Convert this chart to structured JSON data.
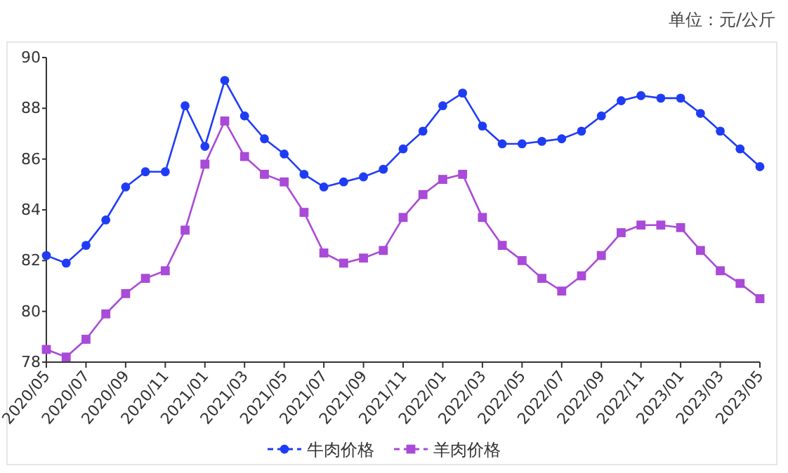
{
  "chart_data": {
    "type": "line",
    "annotations": [
      "单位：元/公斤"
    ],
    "categories": [
      "2020/05",
      null,
      "2020/07",
      null,
      "2020/09",
      null,
      "2020/11",
      null,
      "2021/01",
      null,
      "2021/03",
      null,
      "2021/05",
      null,
      "2021/07",
      null,
      "2021/09",
      null,
      "2021/11",
      null,
      "2022/01",
      null,
      "2022/03",
      null,
      "2022/05",
      null,
      "2022/07",
      null,
      "2022/09",
      null,
      "2022/11",
      null,
      "2023/01",
      null,
      "2023/03",
      null,
      "2023/05"
    ],
    "series": [
      {
        "name": "牛肉价格",
        "color": "#1f3cf5",
        "marker": "circle",
        "values": [
          82.2,
          81.9,
          82.6,
          83.6,
          84.9,
          85.5,
          85.5,
          88.1,
          86.5,
          89.1,
          87.7,
          86.8,
          86.2,
          85.4,
          84.9,
          85.1,
          85.3,
          85.6,
          86.4,
          87.1,
          88.1,
          88.6,
          87.3,
          86.6,
          86.6,
          86.7,
          86.8,
          87.1,
          87.7,
          88.3,
          88.5,
          88.4,
          88.4,
          87.8,
          87.1,
          86.4,
          85.7
        ]
      },
      {
        "name": "羊肉价格",
        "color": "#a94ad8",
        "marker": "square",
        "values": [
          78.5,
          78.2,
          78.9,
          79.9,
          80.7,
          81.3,
          81.6,
          83.2,
          85.8,
          87.5,
          86.1,
          85.4,
          85.1,
          83.9,
          82.3,
          81.9,
          82.1,
          82.4,
          83.7,
          84.6,
          85.2,
          85.4,
          83.7,
          82.6,
          82.0,
          81.3,
          80.8,
          81.4,
          82.2,
          83.1,
          83.4,
          83.4,
          83.3,
          82.4,
          81.6,
          81.1,
          80.5
        ]
      }
    ],
    "ylim": [
      78,
      90
    ],
    "yticks": [
      78,
      80,
      82,
      84,
      86,
      88,
      90
    ],
    "grid": false,
    "legend": "bottom"
  }
}
